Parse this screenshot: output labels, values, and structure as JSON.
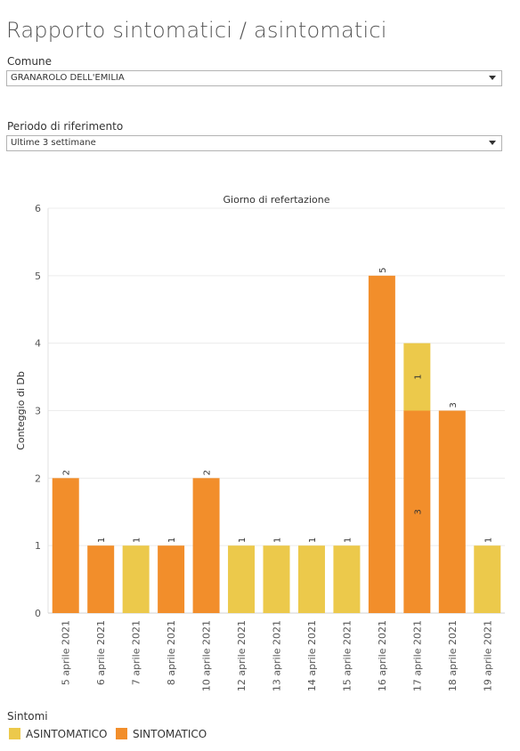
{
  "page": {
    "title": "Rapporto sintomatici / asintomatici"
  },
  "filters": {
    "comune_label": "Comune",
    "comune_value": "GRANAROLO DELL'EMILIA",
    "periodo_label": "Periodo di riferimento",
    "periodo_value": "Ultime 3 settimane"
  },
  "legend": {
    "title": "Sintomi",
    "items": [
      {
        "label": "ASINTOMATICO",
        "color": "#ECC94B"
      },
      {
        "label": "SINTOMATICO",
        "color": "#F28E2B"
      }
    ]
  },
  "chart_data": {
    "type": "bar",
    "stacked": true,
    "title": "Giorno di refertazione",
    "xlabel": "",
    "ylabel": "Conteggio di Db",
    "ylim": [
      0,
      6
    ],
    "yticks": [
      0,
      1,
      2,
      3,
      4,
      5,
      6
    ],
    "grid": true,
    "categories": [
      "5 aprile 2021",
      "6 aprile 2021",
      "7 aprile 2021",
      "8 aprile 2021",
      "10 aprile 2021",
      "12 aprile 2021",
      "13 aprile 2021",
      "14 aprile 2021",
      "15 aprile 2021",
      "16 aprile 2021",
      "17 aprile 2021",
      "18 aprile 2021",
      "19 aprile 2021"
    ],
    "series": [
      {
        "name": "SINTOMATICO",
        "color": "#F28E2B",
        "values": [
          2,
          1,
          0,
          1,
          2,
          0,
          0,
          0,
          0,
          5,
          3,
          3,
          0
        ]
      },
      {
        "name": "ASINTOMATICO",
        "color": "#ECC94B",
        "values": [
          0,
          0,
          1,
          0,
          0,
          1,
          1,
          1,
          1,
          0,
          1,
          0,
          1
        ]
      }
    ],
    "totals": [
      2,
      1,
      1,
      1,
      2,
      1,
      1,
      1,
      1,
      5,
      4,
      3,
      1
    ]
  }
}
